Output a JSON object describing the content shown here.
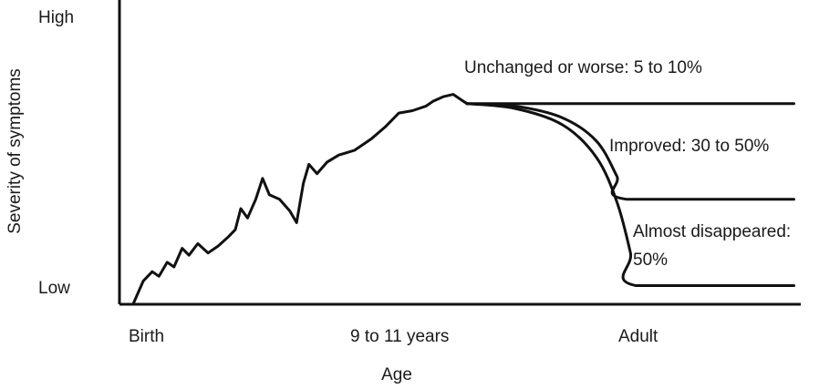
{
  "chart_data": {
    "type": "line",
    "ylabel": "Severity of symptoms",
    "xlabel": "Age",
    "y_ticks": [
      "High",
      "Low"
    ],
    "x_ticks": [
      "Birth",
      "9 to 11 years",
      "Adult"
    ],
    "grid": false,
    "x_scale": "ordinal-continuous",
    "xlim": [
      0,
      1
    ],
    "ylim": [
      0,
      1
    ],
    "series": [
      {
        "name": "",
        "values": [
          [
            0.02,
            0.0
          ],
          [
            0.035,
            0.1
          ],
          [
            0.048,
            0.14
          ],
          [
            0.058,
            0.12
          ],
          [
            0.07,
            0.18
          ],
          [
            0.08,
            0.16
          ],
          [
            0.092,
            0.24
          ],
          [
            0.102,
            0.21
          ],
          [
            0.115,
            0.26
          ],
          [
            0.13,
            0.22
          ],
          [
            0.145,
            0.25
          ],
          [
            0.16,
            0.29
          ],
          [
            0.17,
            0.32
          ],
          [
            0.178,
            0.41
          ],
          [
            0.188,
            0.37
          ],
          [
            0.2,
            0.45
          ],
          [
            0.21,
            0.54
          ],
          [
            0.22,
            0.47
          ],
          [
            0.235,
            0.45
          ],
          [
            0.25,
            0.4
          ],
          [
            0.26,
            0.35
          ],
          [
            0.27,
            0.52
          ],
          [
            0.278,
            0.6
          ],
          [
            0.29,
            0.56
          ],
          [
            0.305,
            0.61
          ],
          [
            0.322,
            0.64
          ],
          [
            0.345,
            0.66
          ],
          [
            0.37,
            0.71
          ],
          [
            0.39,
            0.76
          ],
          [
            0.41,
            0.82
          ],
          [
            0.43,
            0.83
          ],
          [
            0.45,
            0.85
          ],
          [
            0.46,
            0.87
          ],
          [
            0.475,
            0.89
          ],
          [
            0.49,
            0.9
          ],
          [
            0.5,
            0.88
          ],
          [
            0.51,
            0.86
          ]
        ]
      },
      {
        "name": "Unchanged or worse: 5 to 10%",
        "values": [
          [
            0.51,
            0.86
          ],
          [
            0.99,
            0.86
          ]
        ]
      },
      {
        "name": "Improved: 30 to 50%",
        "values": [
          [
            0.51,
            0.86
          ],
          [
            0.58,
            0.85
          ],
          [
            0.65,
            0.8
          ],
          [
            0.7,
            0.7
          ],
          [
            0.73,
            0.55
          ],
          [
            0.745,
            0.45
          ],
          [
            0.99,
            0.45
          ]
        ]
      },
      {
        "name": "Almost disappeared: 50%",
        "values": [
          [
            0.51,
            0.86
          ],
          [
            0.58,
            0.84
          ],
          [
            0.65,
            0.77
          ],
          [
            0.7,
            0.63
          ],
          [
            0.73,
            0.44
          ],
          [
            0.75,
            0.22
          ],
          [
            0.758,
            0.08
          ],
          [
            0.99,
            0.08
          ]
        ]
      }
    ],
    "annotations": [
      {
        "text": "Unchanged or worse: 5 to 10%",
        "series": "Unchanged or worse: 5 to 10%"
      },
      {
        "text": "Improved: 30 to 50%",
        "series": "Improved: 30 to 50%"
      },
      {
        "text": "Almost disappeared:",
        "series": "Almost disappeared: 50%",
        "line": 1
      },
      {
        "text": "50%",
        "series": "Almost disappeared: 50%",
        "line": 2
      }
    ]
  }
}
